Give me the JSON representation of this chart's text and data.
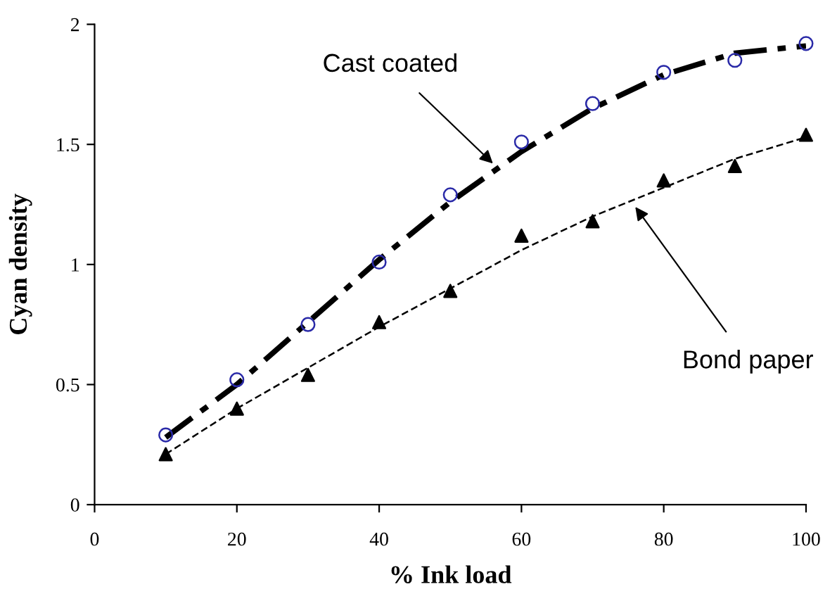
{
  "chart_data": {
    "type": "scatter",
    "xlabel": "% Ink load",
    "ylabel": "Cyan density",
    "xlim": [
      0,
      100
    ],
    "ylim": [
      0,
      2
    ],
    "xticks": [
      0,
      20,
      40,
      60,
      80,
      100
    ],
    "yticks": [
      0,
      0.5,
      1,
      1.5,
      2
    ],
    "grid": false,
    "legend": false,
    "series": [
      {
        "color": "#2a2aa8",
        "marker": "circle",
        "x": [
          10,
          20,
          30,
          40,
          50,
          60,
          70,
          80,
          90,
          100
        ],
        "values": [
          0.29,
          0.52,
          0.75,
          1.01,
          1.29,
          1.51,
          1.67,
          1.8,
          1.85,
          1.92
        ]
      },
      {
        "color": "#000000",
        "marker": "triangle",
        "x": [
          10,
          20,
          30,
          40,
          50,
          60,
          70,
          80,
          90,
          100
        ],
        "values": [
          0.21,
          0.4,
          0.54,
          0.76,
          0.89,
          1.12,
          1.18,
          1.35,
          1.41,
          1.54
        ]
      },
      {
        "type": "line",
        "color": "#000000",
        "line_style": "dashdot",
        "marker": "none",
        "x": [
          10,
          20,
          30,
          40,
          50,
          60,
          70,
          80,
          90,
          100
        ],
        "values": [
          0.28,
          0.5,
          0.76,
          1.02,
          1.26,
          1.47,
          1.65,
          1.79,
          1.88,
          1.91
        ]
      },
      {
        "type": "line",
        "color": "#000000",
        "line_style": "dashed",
        "marker": "none",
        "x": [
          10,
          20,
          30,
          40,
          50,
          60,
          70,
          80,
          90,
          100
        ],
        "values": [
          0.21,
          0.4,
          0.57,
          0.74,
          0.9,
          1.06,
          1.2,
          1.32,
          1.44,
          1.53
        ]
      }
    ],
    "annotations": [
      {
        "text": "Cast coated",
        "x": 56,
        "y": 1.42
      },
      {
        "text": "Bond paper",
        "x": 76,
        "y": 1.24
      }
    ]
  }
}
